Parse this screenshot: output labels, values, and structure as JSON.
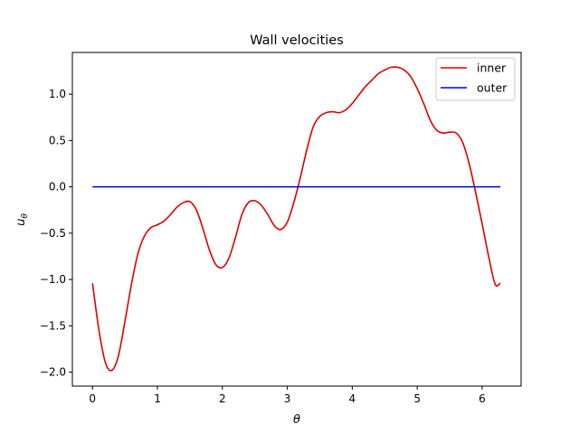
{
  "chart_data": {
    "type": "line",
    "title": "Wall velocities",
    "xlabel": "θ",
    "ylabel": "u",
    "ylabel_subscript": "θ",
    "xlim": [
      -0.31,
      6.6
    ],
    "ylim": [
      -2.15,
      1.45
    ],
    "x_ticks": [
      0,
      1,
      2,
      3,
      4,
      5,
      6
    ],
    "x_tick_labels": [
      "0",
      "1",
      "2",
      "3",
      "4",
      "5",
      "6"
    ],
    "y_ticks": [
      1.0,
      0.5,
      0.0,
      -0.5,
      -1.0,
      -1.5,
      -2.0
    ],
    "y_tick_labels": [
      "1.0",
      "0.5",
      "0.0",
      "−0.5",
      "−1.0",
      "−1.5",
      "−2.0"
    ],
    "legend_position": "upper right",
    "series": [
      {
        "name": "inner",
        "color": "#dd0000",
        "x": [
          0.0,
          0.1,
          0.2,
          0.3,
          0.4,
          0.5,
          0.6,
          0.7,
          0.8,
          0.9,
          1.0,
          1.1,
          1.2,
          1.3,
          1.4,
          1.5,
          1.6,
          1.7,
          1.8,
          1.9,
          2.0,
          2.1,
          2.2,
          2.3,
          2.4,
          2.5,
          2.6,
          2.7,
          2.8,
          2.9,
          3.0,
          3.1,
          3.2,
          3.3,
          3.4,
          3.5,
          3.6,
          3.7,
          3.8,
          3.9,
          4.0,
          4.1,
          4.2,
          4.3,
          4.4,
          4.5,
          4.6,
          4.7,
          4.8,
          4.9,
          5.0,
          5.1,
          5.2,
          5.3,
          5.4,
          5.5,
          5.6,
          5.7,
          5.8,
          5.9,
          6.0,
          6.1,
          6.2,
          6.28
        ],
        "y": [
          -1.04,
          -1.55,
          -1.9,
          -1.98,
          -1.82,
          -1.45,
          -1.05,
          -0.72,
          -0.53,
          -0.44,
          -0.41,
          -0.37,
          -0.3,
          -0.22,
          -0.17,
          -0.16,
          -0.25,
          -0.45,
          -0.68,
          -0.84,
          -0.87,
          -0.77,
          -0.55,
          -0.3,
          -0.17,
          -0.15,
          -0.2,
          -0.3,
          -0.42,
          -0.46,
          -0.38,
          -0.17,
          0.1,
          0.4,
          0.65,
          0.76,
          0.8,
          0.81,
          0.8,
          0.83,
          0.9,
          0.99,
          1.08,
          1.15,
          1.22,
          1.26,
          1.29,
          1.29,
          1.26,
          1.19,
          1.06,
          0.9,
          0.72,
          0.61,
          0.58,
          0.59,
          0.58,
          0.48,
          0.25,
          -0.06,
          -0.4,
          -0.75,
          -1.05,
          -1.04
        ]
      },
      {
        "name": "outer",
        "color": "#0000dd",
        "x": [
          0.0,
          6.28
        ],
        "y": [
          0.0,
          0.0
        ]
      }
    ]
  }
}
